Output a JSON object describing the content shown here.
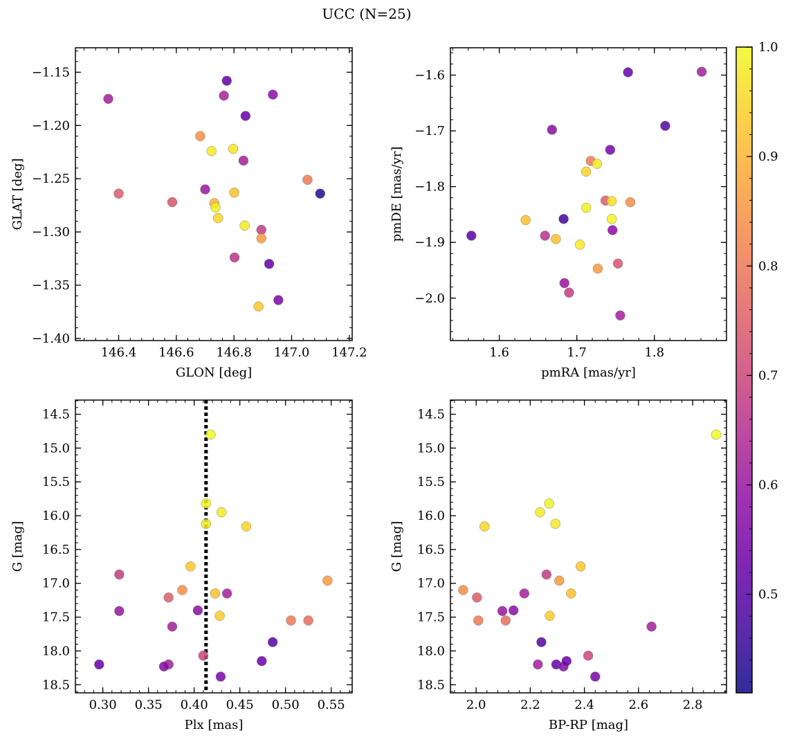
{
  "figure": {
    "title": "UCC (N=25)",
    "colormap": "plasma",
    "colorbar": {
      "min": 0.41,
      "max": 1.0,
      "ticks": [
        0.5,
        0.6,
        0.7,
        0.8,
        0.9,
        1.0
      ],
      "tick_labels": [
        "0.5",
        "0.6",
        "0.7",
        "0.8",
        "0.9",
        "1.0"
      ]
    }
  },
  "chart_data": [
    {
      "type": "scatter",
      "name": "glon-glat",
      "xlabel": "GLON [deg]",
      "ylabel": "GLAT [deg]",
      "xlim": [
        146.25,
        147.21
      ],
      "ylim": [
        -1.402,
        -1.127
      ],
      "xticks": [
        146.4,
        146.6,
        146.8,
        147.0,
        147.2
      ],
      "xtick_labels": [
        "146.4",
        "146.6",
        "146.8",
        "147.0",
        "147.2"
      ],
      "yticks": [
        -1.4,
        -1.35,
        -1.3,
        -1.25,
        -1.2,
        -1.15
      ],
      "ytick_labels": [
        "−1.40",
        "−1.35",
        "−1.30",
        "−1.25",
        "−1.20",
        "−1.15"
      ],
      "y_inverted": false,
      "points": [
        {
          "x": 146.364,
          "y": -1.175,
          "c": 0.62
        },
        {
          "x": 146.775,
          "y": -1.158,
          "c": 0.52
        },
        {
          "x": 146.765,
          "y": -1.172,
          "c": 0.63
        },
        {
          "x": 146.935,
          "y": -1.171,
          "c": 0.58
        },
        {
          "x": 146.84,
          "y": -1.191,
          "c": 0.52
        },
        {
          "x": 146.683,
          "y": -1.21,
          "c": 0.84
        },
        {
          "x": 146.722,
          "y": -1.224,
          "c": 0.98
        },
        {
          "x": 146.797,
          "y": -1.222,
          "c": 0.97
        },
        {
          "x": 146.833,
          "y": -1.233,
          "c": 0.62
        },
        {
          "x": 146.4,
          "y": -1.264,
          "c": 0.75
        },
        {
          "x": 146.7,
          "y": -1.26,
          "c": 0.6
        },
        {
          "x": 146.801,
          "y": -1.263,
          "c": 0.92
        },
        {
          "x": 147.055,
          "y": -1.251,
          "c": 0.8
        },
        {
          "x": 147.099,
          "y": -1.264,
          "c": 0.44
        },
        {
          "x": 146.586,
          "y": -1.272,
          "c": 0.73
        },
        {
          "x": 146.732,
          "y": -1.273,
          "c": 0.9
        },
        {
          "x": 146.736,
          "y": -1.277,
          "c": 0.99
        },
        {
          "x": 146.745,
          "y": -1.287,
          "c": 0.95
        },
        {
          "x": 146.837,
          "y": -1.294,
          "c": 0.98
        },
        {
          "x": 146.895,
          "y": -1.298,
          "c": 0.68
        },
        {
          "x": 146.895,
          "y": -1.306,
          "c": 0.86
        },
        {
          "x": 146.802,
          "y": -1.324,
          "c": 0.66
        },
        {
          "x": 146.922,
          "y": -1.33,
          "c": 0.52
        },
        {
          "x": 146.954,
          "y": -1.364,
          "c": 0.55
        },
        {
          "x": 146.885,
          "y": -1.37,
          "c": 0.93
        }
      ]
    },
    {
      "type": "scatter",
      "name": "pmra-pmde",
      "xlabel": "pmRA [mas/yr]",
      "ylabel": "pmDE [mas/yr]",
      "xlim": [
        1.537,
        1.893
      ],
      "ylim": [
        -2.076,
        -1.551
      ],
      "xticks": [
        1.6,
        1.7,
        1.8
      ],
      "xtick_labels": [
        "1.6",
        "1.7",
        "1.8"
      ],
      "yticks": [
        -2.0,
        -1.9,
        -1.8,
        -1.7,
        -1.6
      ],
      "ytick_labels": [
        "−2.0",
        "−1.9",
        "−1.8",
        "−1.7",
        "−1.6"
      ],
      "y_inverted": false,
      "points": [
        {
          "x": 1.766,
          "y": -1.595,
          "c": 0.52
        },
        {
          "x": 1.861,
          "y": -1.594,
          "c": 0.62
        },
        {
          "x": 1.668,
          "y": -1.698,
          "c": 0.58
        },
        {
          "x": 1.814,
          "y": -1.691,
          "c": 0.5
        },
        {
          "x": 1.743,
          "y": -1.734,
          "c": 0.55
        },
        {
          "x": 1.718,
          "y": -1.754,
          "c": 0.8
        },
        {
          "x": 1.726,
          "y": -1.759,
          "c": 0.98
        },
        {
          "x": 1.712,
          "y": -1.773,
          "c": 0.95
        },
        {
          "x": 1.737,
          "y": -1.825,
          "c": 0.75
        },
        {
          "x": 1.745,
          "y": -1.826,
          "c": 0.97
        },
        {
          "x": 1.769,
          "y": -1.828,
          "c": 0.84
        },
        {
          "x": 1.712,
          "y": -1.838,
          "c": 0.99
        },
        {
          "x": 1.564,
          "y": -1.888,
          "c": 0.5
        },
        {
          "x": 1.634,
          "y": -1.86,
          "c": 0.92
        },
        {
          "x": 1.683,
          "y": -1.858,
          "c": 0.47
        },
        {
          "x": 1.745,
          "y": -1.858,
          "c": 0.99
        },
        {
          "x": 1.659,
          "y": -1.888,
          "c": 0.66
        },
        {
          "x": 1.673,
          "y": -1.894,
          "c": 0.92
        },
        {
          "x": 1.704,
          "y": -1.904,
          "c": 0.98
        },
        {
          "x": 1.746,
          "y": -1.878,
          "c": 0.58
        },
        {
          "x": 1.753,
          "y": -1.938,
          "c": 0.73
        },
        {
          "x": 1.727,
          "y": -1.947,
          "c": 0.86
        },
        {
          "x": 1.684,
          "y": -1.973,
          "c": 0.6
        },
        {
          "x": 1.69,
          "y": -1.99,
          "c": 0.68
        },
        {
          "x": 1.756,
          "y": -2.031,
          "c": 0.62
        }
      ]
    },
    {
      "type": "scatter",
      "name": "plx-g",
      "xlabel": "Plx [mas]",
      "ylabel": "G [mag]",
      "xlim": [
        0.27,
        0.573
      ],
      "ylim": [
        14.29,
        18.62
      ],
      "xticks": [
        0.3,
        0.35,
        0.4,
        0.45,
        0.5,
        0.55
      ],
      "xtick_labels": [
        "0.30",
        "0.35",
        "0.40",
        "0.45",
        "0.50",
        "0.55"
      ],
      "yticks": [
        14.5,
        15.0,
        15.5,
        16.0,
        16.5,
        17.0,
        17.5,
        18.0,
        18.5
      ],
      "ytick_labels": [
        "14.5",
        "15.0",
        "15.5",
        "16.0",
        "16.5",
        "17.0",
        "17.5",
        "18.0",
        "18.5"
      ],
      "y_inverted": true,
      "vline": 0.413,
      "points": [
        {
          "x": 0.418,
          "y": 14.8,
          "c": 1.0
        },
        {
          "x": 0.413,
          "y": 15.82,
          "c": 0.99
        },
        {
          "x": 0.43,
          "y": 15.95,
          "c": 0.98
        },
        {
          "x": 0.413,
          "y": 16.12,
          "c": 0.98
        },
        {
          "x": 0.457,
          "y": 16.16,
          "c": 0.95
        },
        {
          "x": 0.318,
          "y": 16.87,
          "c": 0.68
        },
        {
          "x": 0.396,
          "y": 16.75,
          "c": 0.93
        },
        {
          "x": 0.546,
          "y": 16.96,
          "c": 0.86
        },
        {
          "x": 0.387,
          "y": 17.1,
          "c": 0.84
        },
        {
          "x": 0.423,
          "y": 17.15,
          "c": 0.92
        },
        {
          "x": 0.436,
          "y": 17.15,
          "c": 0.62
        },
        {
          "x": 0.372,
          "y": 17.21,
          "c": 0.75
        },
        {
          "x": 0.318,
          "y": 17.41,
          "c": 0.6
        },
        {
          "x": 0.404,
          "y": 17.4,
          "c": 0.58
        },
        {
          "x": 0.428,
          "y": 17.48,
          "c": 0.94
        },
        {
          "x": 0.506,
          "y": 17.55,
          "c": 0.8
        },
        {
          "x": 0.525,
          "y": 17.55,
          "c": 0.78
        },
        {
          "x": 0.376,
          "y": 17.64,
          "c": 0.62
        },
        {
          "x": 0.486,
          "y": 17.87,
          "c": 0.5
        },
        {
          "x": 0.41,
          "y": 18.07,
          "c": 0.7
        },
        {
          "x": 0.296,
          "y": 18.2,
          "c": 0.52
        },
        {
          "x": 0.372,
          "y": 18.2,
          "c": 0.62
        },
        {
          "x": 0.367,
          "y": 18.23,
          "c": 0.57
        },
        {
          "x": 0.474,
          "y": 18.15,
          "c": 0.53
        },
        {
          "x": 0.429,
          "y": 18.38,
          "c": 0.55
        }
      ]
    },
    {
      "type": "scatter",
      "name": "bprp-g",
      "xlabel": "BP-RP [mag]",
      "ylabel": "G [mag]",
      "xlim": [
        1.905,
        2.925
      ],
      "ylim": [
        14.29,
        18.62
      ],
      "xticks": [
        2.0,
        2.2,
        2.4,
        2.6,
        2.8
      ],
      "xtick_labels": [
        "2.0",
        "2.2",
        "2.4",
        "2.6",
        "2.8"
      ],
      "yticks": [
        14.5,
        15.0,
        15.5,
        16.0,
        16.5,
        17.0,
        17.5,
        18.0,
        18.5
      ],
      "ytick_labels": [
        "14.5",
        "15.0",
        "15.5",
        "16.0",
        "16.5",
        "17.0",
        "17.5",
        "18.0",
        "18.5"
      ],
      "y_inverted": true,
      "points": [
        {
          "x": 2.887,
          "y": 14.8,
          "c": 1.0
        },
        {
          "x": 2.27,
          "y": 15.82,
          "c": 0.99
        },
        {
          "x": 2.236,
          "y": 15.95,
          "c": 0.98
        },
        {
          "x": 2.293,
          "y": 16.12,
          "c": 0.98
        },
        {
          "x": 2.031,
          "y": 16.16,
          "c": 0.95
        },
        {
          "x": 2.386,
          "y": 16.75,
          "c": 0.93
        },
        {
          "x": 2.26,
          "y": 16.87,
          "c": 0.68
        },
        {
          "x": 2.307,
          "y": 16.96,
          "c": 0.86
        },
        {
          "x": 1.952,
          "y": 17.1,
          "c": 0.84
        },
        {
          "x": 2.351,
          "y": 17.15,
          "c": 0.92
        },
        {
          "x": 2.178,
          "y": 17.15,
          "c": 0.62
        },
        {
          "x": 2.003,
          "y": 17.21,
          "c": 0.75
        },
        {
          "x": 2.097,
          "y": 17.41,
          "c": 0.6
        },
        {
          "x": 2.138,
          "y": 17.4,
          "c": 0.58
        },
        {
          "x": 2.272,
          "y": 17.48,
          "c": 0.94
        },
        {
          "x": 2.008,
          "y": 17.55,
          "c": 0.8
        },
        {
          "x": 2.109,
          "y": 17.55,
          "c": 0.78
        },
        {
          "x": 2.648,
          "y": 17.64,
          "c": 0.62
        },
        {
          "x": 2.241,
          "y": 17.87,
          "c": 0.5
        },
        {
          "x": 2.414,
          "y": 18.07,
          "c": 0.7
        },
        {
          "x": 2.296,
          "y": 18.2,
          "c": 0.52
        },
        {
          "x": 2.228,
          "y": 18.2,
          "c": 0.62
        },
        {
          "x": 2.323,
          "y": 18.23,
          "c": 0.57
        },
        {
          "x": 2.334,
          "y": 18.15,
          "c": 0.53
        },
        {
          "x": 2.44,
          "y": 18.38,
          "c": 0.55
        }
      ]
    }
  ]
}
